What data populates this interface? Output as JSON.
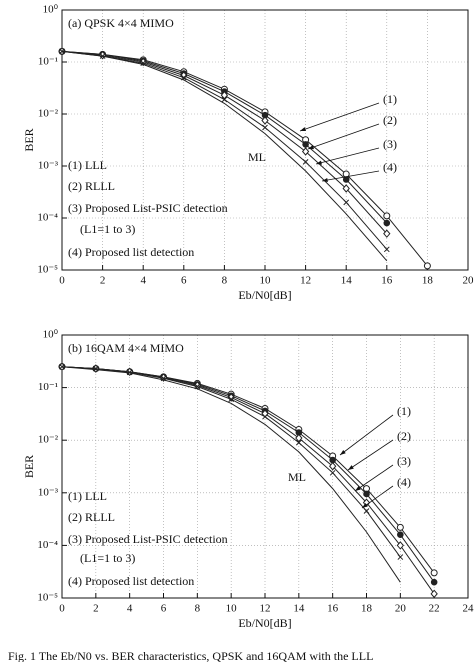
{
  "chart_data": [
    {
      "type": "line",
      "title": "(a) QPSK 4×4 MIMO",
      "xlabel": "Eb/N0[dB]",
      "ylabel": "BER",
      "xlim": [
        0,
        20
      ],
      "xticks": [
        0,
        2,
        4,
        6,
        8,
        10,
        12,
        14,
        16,
        18,
        20
      ],
      "ylim": [
        1e-05,
        1
      ],
      "log_y": true,
      "grid": true,
      "yticks": [
        {
          "value": 1,
          "label": "10⁰"
        },
        {
          "value": 0.1,
          "label": "10⁻¹"
        },
        {
          "value": 0.01,
          "label": "10⁻²"
        },
        {
          "value": 0.001,
          "label": "10⁻³"
        },
        {
          "value": 0.0001,
          "label": "10⁻⁴"
        },
        {
          "value": 1e-05,
          "label": "10⁻⁵"
        }
      ],
      "x": [
        0,
        2,
        4,
        6,
        8,
        10,
        12,
        14,
        16,
        18
      ],
      "series": [
        {
          "name": "(1) LLL",
          "color": "#222222",
          "marker": "open-circle",
          "values": [
            0.16,
            0.14,
            0.11,
            0.065,
            0.03,
            0.011,
            0.0032,
            0.0007,
            0.00011,
            1.2e-05
          ]
        },
        {
          "name": "(2) RLLL",
          "color": "#222222",
          "marker": "filled-circle",
          "values": [
            0.16,
            0.14,
            0.105,
            0.06,
            0.027,
            0.0095,
            0.0026,
            0.00055,
            8e-05,
            null
          ]
        },
        {
          "name": "(3) Proposed List-PSIC detection",
          "color": "#222222",
          "marker": "diamond",
          "values": [
            0.16,
            0.135,
            0.1,
            0.055,
            0.023,
            0.0075,
            0.0019,
            0.00037,
            5e-05,
            null
          ]
        },
        {
          "name": "(4) Proposed list detection",
          "color": "#222222",
          "marker": "cross",
          "values": [
            0.16,
            0.13,
            0.095,
            0.05,
            0.019,
            0.0055,
            0.0012,
            0.0002,
            2.5e-05,
            null
          ]
        },
        {
          "name": "ML",
          "color": "#222222",
          "marker": "none",
          "values": [
            0.16,
            0.13,
            0.09,
            0.045,
            0.016,
            0.0042,
            0.0008,
            0.00012,
            1.5e-05,
            null
          ]
        }
      ],
      "legend_note": "(L1=1 to 3)",
      "annotations": [
        "(1)",
        "(2)",
        "(3)",
        "(4)"
      ]
    },
    {
      "type": "line",
      "title": "(b) 16QAM 4×4 MIMO",
      "xlabel": "Eb/N0[dB]",
      "ylabel": "BER",
      "xlim": [
        0,
        24
      ],
      "xticks": [
        0,
        2,
        4,
        6,
        8,
        10,
        12,
        14,
        16,
        18,
        20,
        22,
        24
      ],
      "ylim": [
        1e-05,
        1
      ],
      "log_y": true,
      "grid": true,
      "yticks": [
        {
          "value": 1,
          "label": "10⁰"
        },
        {
          "value": 0.1,
          "label": "10⁻¹"
        },
        {
          "value": 0.01,
          "label": "10⁻²"
        },
        {
          "value": 0.001,
          "label": "10⁻³"
        },
        {
          "value": 0.0001,
          "label": "10⁻⁴"
        },
        {
          "value": 1e-05,
          "label": "10⁻⁵"
        }
      ],
      "x": [
        0,
        2,
        4,
        6,
        8,
        10,
        12,
        14,
        16,
        18,
        20,
        22,
        24
      ],
      "series": [
        {
          "name": "(1) LLL",
          "color": "#222222",
          "marker": "open-circle",
          "values": [
            0.25,
            0.23,
            0.2,
            0.16,
            0.12,
            0.075,
            0.04,
            0.016,
            0.005,
            0.0012,
            0.00022,
            3e-05,
            null
          ]
        },
        {
          "name": "(2) RLLL",
          "color": "#222222",
          "marker": "filled-circle",
          "values": [
            0.25,
            0.23,
            0.2,
            0.16,
            0.115,
            0.07,
            0.036,
            0.014,
            0.0042,
            0.00095,
            0.00016,
            2e-05,
            null
          ]
        },
        {
          "name": "(3) Proposed List-PSIC detection",
          "color": "#222222",
          "marker": "diamond",
          "values": [
            0.25,
            0.23,
            0.2,
            0.155,
            0.11,
            0.065,
            0.032,
            0.011,
            0.0032,
            0.00065,
            0.0001,
            1.2e-05,
            null
          ]
        },
        {
          "name": "(4) Proposed list detection",
          "color": "#222222",
          "marker": "cross",
          "values": [
            0.25,
            0.23,
            0.195,
            0.15,
            0.105,
            0.06,
            0.028,
            0.009,
            0.0024,
            0.00045,
            6e-05,
            null,
            null
          ]
        },
        {
          "name": "ML",
          "color": "#222222",
          "marker": "none",
          "values": [
            0.25,
            0.22,
            0.19,
            0.14,
            0.095,
            0.05,
            0.02,
            0.006,
            0.0012,
            0.00018,
            2e-05,
            null,
            null
          ]
        }
      ],
      "legend_note": "(L1=1 to 3)",
      "annotations": [
        "(1)",
        "(2)",
        "(3)",
        "(4)"
      ]
    }
  ],
  "caption": "Fig. 1 The Eb/N0 vs. BER characteristics, QPSK and 16QAM with the LLL"
}
